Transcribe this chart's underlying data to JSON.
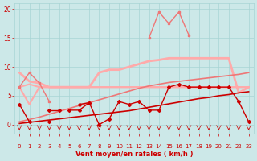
{
  "x": [
    0,
    1,
    2,
    3,
    4,
    5,
    6,
    7,
    8,
    9,
    10,
    11,
    12,
    13,
    14,
    15,
    16,
    17,
    18,
    19,
    20,
    21,
    22,
    23
  ],
  "line_rafales_light": [
    9.0,
    7.5,
    7.2,
    6.5,
    6.5,
    6.5,
    6.5,
    6.5,
    9.0,
    9.5,
    9.5,
    10.0,
    10.5,
    11.0,
    11.2,
    11.5,
    11.5,
    11.5,
    11.5,
    11.5,
    11.5,
    11.5,
    5.5,
    6.5
  ],
  "line_rafales_mid": [
    6.5,
    null,
    null,
    null,
    null,
    null,
    null,
    null,
    null,
    null,
    null,
    null,
    null,
    null,
    null,
    null,
    null,
    null,
    null,
    null,
    null,
    null,
    null,
    null
  ],
  "line_moy_flat_light": [
    6.5,
    7.0,
    6.5,
    6.5,
    6.5,
    6.5,
    6.5,
    6.5,
    6.5,
    6.5,
    6.5,
    6.5,
    6.5,
    6.5,
    6.5,
    6.5,
    6.5,
    6.5,
    6.5,
    6.5,
    6.5,
    6.5,
    6.5,
    6.5
  ],
  "line_moy_flat_mid": [
    6.5,
    3.5,
    6.5,
    6.5,
    6.5,
    6.5,
    6.5,
    6.5,
    6.5,
    6.5,
    6.5,
    6.5,
    6.5,
    6.5,
    6.5,
    6.5,
    6.5,
    6.5,
    6.5,
    6.5,
    6.5,
    6.5,
    6.5,
    6.5
  ],
  "line_trend_dark_low": [
    0.2,
    0.4,
    0.6,
    0.8,
    1.0,
    1.2,
    1.4,
    1.6,
    1.8,
    2.0,
    2.2,
    2.4,
    2.7,
    3.0,
    3.3,
    3.6,
    3.9,
    4.2,
    4.5,
    4.7,
    5.0,
    5.2,
    5.5,
    5.7
  ],
  "line_trend_dark_high": [
    0.5,
    0.9,
    1.3,
    1.8,
    2.3,
    2.8,
    3.3,
    3.8,
    4.3,
    4.8,
    5.3,
    5.8,
    6.3,
    6.7,
    7.0,
    7.3,
    7.5,
    7.7,
    7.9,
    8.1,
    8.3,
    8.5,
    8.7,
    9.0
  ],
  "line_spiky_light_top": [
    null,
    null,
    null,
    null,
    null,
    null,
    null,
    null,
    null,
    null,
    null,
    null,
    null,
    15.0,
    19.5,
    17.5,
    19.5,
    15.5,
    null,
    null,
    null,
    null,
    null,
    null
  ],
  "line_spiky_mid": [
    6.5,
    9.0,
    7.2,
    4.0,
    null,
    null,
    null,
    null,
    null,
    null,
    null,
    null,
    null,
    null,
    null,
    null,
    null,
    null,
    null,
    null,
    null,
    null,
    null,
    null
  ],
  "line_dark_main": [
    null,
    null,
    null,
    0.5,
    null,
    2.5,
    2.5,
    3.8,
    0.0,
    1.0,
    4.0,
    3.5,
    4.0,
    2.5,
    2.5,
    6.5,
    7.0,
    6.5,
    6.5,
    6.5,
    6.5,
    6.5,
    4.0,
    0.5
  ],
  "line_dark_left": [
    3.5,
    0.5,
    null,
    null,
    null,
    null,
    null,
    null,
    null,
    null,
    null,
    null,
    null,
    null,
    null,
    null,
    null,
    null,
    null,
    null,
    null,
    null,
    null,
    null
  ],
  "line_dark_mid_left": [
    null,
    null,
    null,
    2.5,
    2.5,
    null,
    3.5,
    3.8,
    null,
    null,
    null,
    null,
    null,
    null,
    null,
    null,
    null,
    null,
    null,
    null,
    null,
    null,
    null,
    null
  ],
  "wind_arrows_x": [
    0,
    1,
    2,
    3,
    4,
    5,
    6,
    7,
    8,
    9,
    10,
    11,
    12,
    13,
    14,
    15,
    16,
    17,
    18,
    19,
    20,
    21,
    22,
    23
  ],
  "bg_color": "#cce8e8",
  "grid_color": "#a8d4d4",
  "dark": "#cc0000",
  "mid": "#ee7777",
  "light": "#ffaaaa",
  "xlabel": "Vent moyen/en rafales ( km/h )",
  "yticks": [
    0,
    5,
    10,
    15,
    20
  ],
  "xticks": [
    0,
    1,
    2,
    3,
    4,
    5,
    6,
    7,
    8,
    9,
    10,
    11,
    12,
    13,
    14,
    15,
    16,
    17,
    18,
    19,
    20,
    21,
    22,
    23
  ],
  "ylim": [
    -1.5,
    21
  ],
  "xlim": [
    -0.5,
    23.5
  ]
}
